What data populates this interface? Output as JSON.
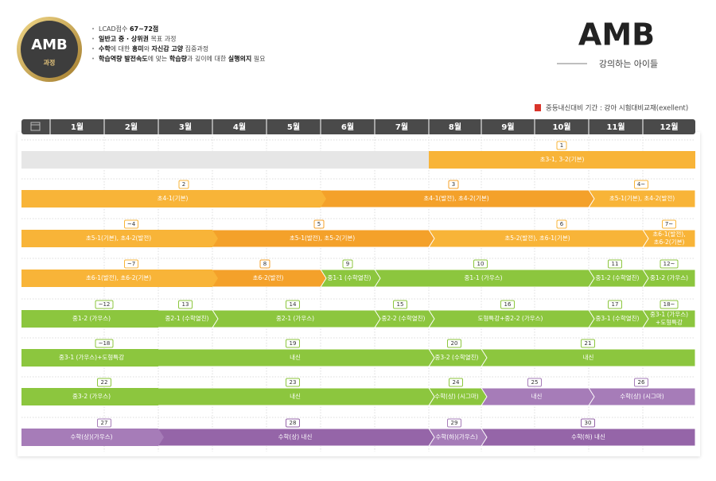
{
  "header": {
    "logo": {
      "title": "AMB",
      "subtitle": "과정"
    },
    "bullets": [
      [
        {
          "text": "LCAD점수 "
        },
        {
          "text": "67~72점",
          "bold": true
        }
      ],
      [
        {
          "text": "일반고 중 · 상위권",
          "bold": true
        },
        {
          "text": " 목표 과정"
        }
      ],
      [
        {
          "text": "수학",
          "bold": true
        },
        {
          "text": "에 대한 "
        },
        {
          "text": "흥미",
          "bold": true
        },
        {
          "text": "와 "
        },
        {
          "text": "자신감 고양",
          "bold": true
        },
        {
          "text": " 집중과정"
        }
      ],
      [
        {
          "text": "학습역량 발전속도",
          "bold": true
        },
        {
          "text": "에 맞는 "
        },
        {
          "text": "학습량",
          "bold": true
        },
        {
          "text": "과 깊이에 대한 "
        },
        {
          "text": "실행의지",
          "bold": true
        },
        {
          "text": " 필요"
        }
      ]
    ],
    "brand": "AMB",
    "brand_sub": "강의하는 아이들"
  },
  "legend": "중등내신대비 기간 : 강아 시험대비교재(exellent)",
  "months": [
    "1월",
    "2월",
    "3월",
    "4월",
    "5월",
    "6월",
    "7월",
    "8월",
    "9월",
    "10월",
    "11월",
    "12월"
  ],
  "rows": [
    {
      "segments": [
        {
          "badge": "1",
          "label": [
            "초3-1, 3-2(기본)"
          ]
        }
      ]
    },
    {
      "segments": [
        {
          "badge": "2",
          "label": [
            "초4-1(기본)"
          ]
        },
        {
          "badge": "3",
          "label": [
            "초4-1(발전), 초4-2(기본)"
          ]
        },
        {
          "badge": "4~",
          "label": [
            "초5-1(기본), 초4-2(발전)"
          ]
        }
      ]
    },
    {
      "segments": [
        {
          "badge": "~4",
          "label": [
            "초5-1(기본), 초4-2(발전)"
          ]
        },
        {
          "badge": "5",
          "label": [
            "초5-1(발전), 초5-2(기본)"
          ]
        },
        {
          "badge": "6",
          "label": [
            "초5-2(발전), 초6-1(기본)"
          ]
        },
        {
          "badge": "7~",
          "label": [
            "초6-1(발전),",
            "초6-2(기본)"
          ]
        }
      ]
    },
    {
      "segments": [
        {
          "badge": "~7",
          "label": [
            "초6-1(발전), 초6-2(기본)"
          ]
        },
        {
          "badge": "8",
          "label": [
            "초6-2(발전)"
          ]
        },
        {
          "badge": "9",
          "label": [
            "중1-1 (수학열친)"
          ]
        },
        {
          "badge": "10",
          "label": [
            "중1-1 (가우스)"
          ]
        },
        {
          "badge": "11",
          "label": [
            "중1-2 (수학열친)"
          ]
        },
        {
          "badge": "12~",
          "label": [
            "중1-2 (가우스)"
          ]
        }
      ]
    },
    {
      "segments": [
        {
          "badge": "~12",
          "label": [
            "중1-2 (가우스)"
          ]
        },
        {
          "badge": "13",
          "label": [
            "중2-1 (수학열친)"
          ]
        },
        {
          "badge": "14",
          "label": [
            "중2-1 (가우스)"
          ]
        },
        {
          "badge": "15",
          "label": [
            "중2-2 (수학열친)"
          ]
        },
        {
          "badge": "16",
          "label": [
            "도형특강+중2-2 (가우스)"
          ]
        },
        {
          "badge": "17",
          "label": [
            "중3-1 (수학열친)"
          ]
        },
        {
          "badge": "18~",
          "label": [
            "중3-1 (가우스)",
            "+도형특강"
          ]
        }
      ]
    },
    {
      "segments": [
        {
          "badge": "~18",
          "label": [
            "중3-1 (가우스)+도형특강"
          ]
        },
        {
          "badge": "19",
          "label": [
            "내신"
          ]
        },
        {
          "badge": "20",
          "label": [
            "중3-2 (수학열친)"
          ]
        },
        {
          "badge": "21",
          "label": [
            "내신"
          ]
        }
      ]
    },
    {
      "segments": [
        {
          "badge": "22",
          "label": [
            "중3-2 (가우스)"
          ]
        },
        {
          "badge": "23",
          "label": [
            "내신"
          ]
        },
        {
          "badge": "24",
          "label": [
            "수학(상) (시그마)"
          ]
        },
        {
          "badge": "25",
          "label": [
            "내신"
          ]
        },
        {
          "badge": "26",
          "label": [
            "수학(상) (시그마)"
          ]
        }
      ]
    },
    {
      "segments": [
        {
          "badge": "27",
          "label": [
            "수학(상)(가우스)"
          ]
        },
        {
          "badge": "28",
          "label": [
            "수학(상) 내신"
          ]
        },
        {
          "badge": "29",
          "label": [
            "수학(하)(가우스)"
          ]
        },
        {
          "badge": "30",
          "label": [
            "수학(하) 내신"
          ]
        }
      ]
    }
  ]
}
